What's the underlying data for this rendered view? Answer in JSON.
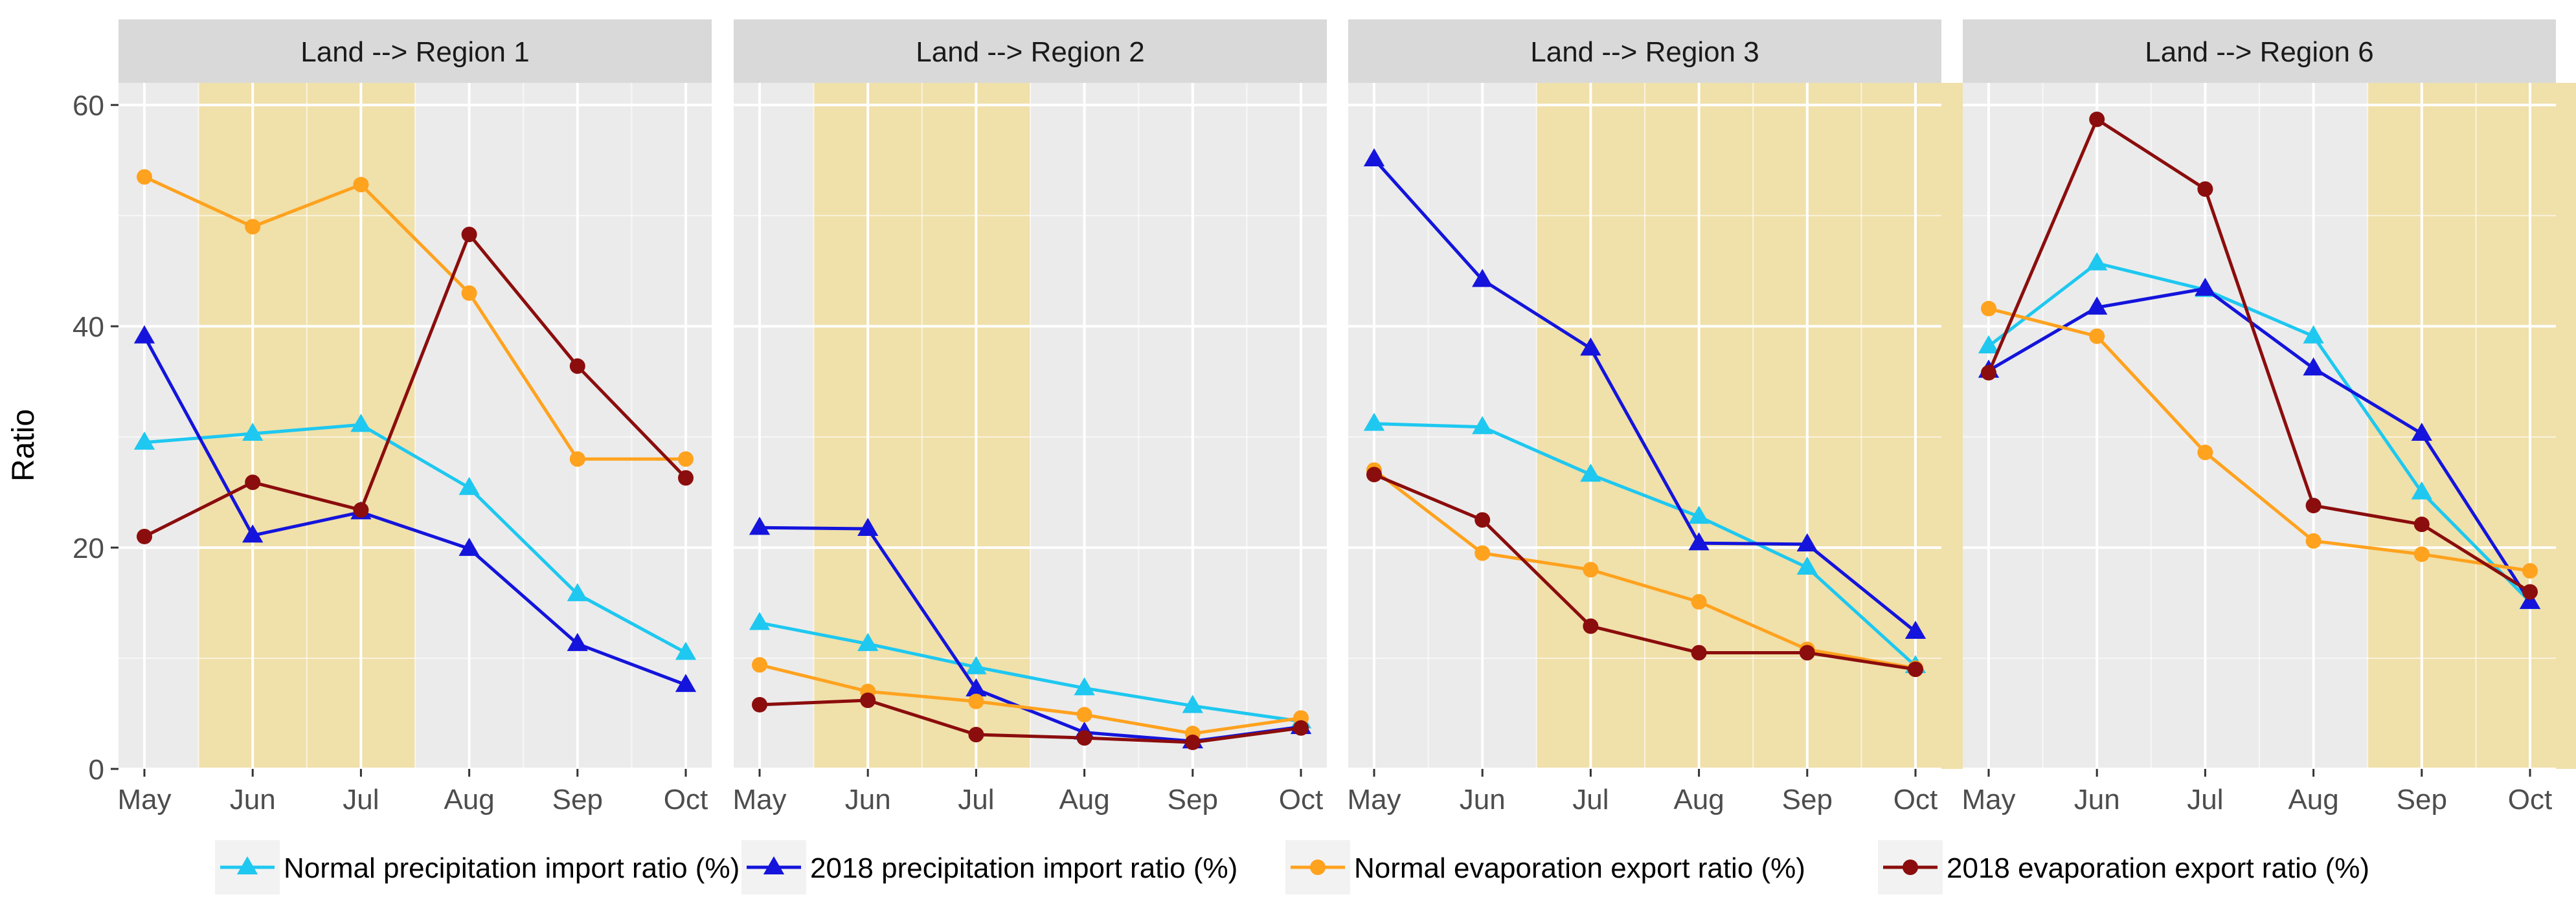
{
  "chart_data": {
    "type": "line",
    "ylabel": "Ratio",
    "ylim": [
      0,
      62
    ],
    "y_ticks": [
      0,
      20,
      40,
      60
    ],
    "categories": [
      "May",
      "Jun",
      "Jul",
      "Aug",
      "Sep",
      "Oct"
    ],
    "colors": {
      "panel_bg": "#ebebeb",
      "strip_bg": "#d9d9d9",
      "highlight": "#f0e0aa",
      "grid": "#ffffff"
    },
    "legend": [
      {
        "label": "Normal precipitation import ratio (%)",
        "color": "#1ec8f0",
        "marker": "triangle"
      },
      {
        "label": "2018 precipitation import ratio (%)",
        "color": "#1414dc",
        "marker": "triangle"
      },
      {
        "label": "Normal evaporation export ratio (%)",
        "color": "#ffa21e",
        "marker": "circle"
      },
      {
        "label": "2018 evaporation export ratio (%)",
        "color": "#8b0d0d",
        "marker": "circle"
      }
    ],
    "panels": [
      {
        "title": "Land --> Region 1",
        "highlight_months": [
          0.5,
          2.5
        ],
        "series": [
          {
            "name": "Normal precipitation import ratio (%)",
            "values": [
              29.5,
              30.3,
              31.1,
              25.4,
              15.8,
              10.5
            ]
          },
          {
            "name": "2018 precipitation import ratio (%)",
            "values": [
              39.1,
              21.1,
              23.2,
              19.9,
              11.3,
              7.6
            ]
          },
          {
            "name": "Normal evaporation export ratio (%)",
            "values": [
              53.5,
              49.0,
              52.8,
              43.0,
              28.0,
              28.0
            ]
          },
          {
            "name": "2018 evaporation export ratio (%)",
            "values": [
              21.0,
              25.9,
              23.4,
              48.3,
              36.4,
              26.3
            ]
          }
        ]
      },
      {
        "title": "Land --> Region 2",
        "highlight_months": [
          0.5,
          2.5
        ],
        "series": [
          {
            "name": "Normal precipitation import ratio (%)",
            "values": [
              13.2,
              11.3,
              9.2,
              7.3,
              5.7,
              4.3
            ]
          },
          {
            "name": "2018 precipitation import ratio (%)",
            "values": [
              21.8,
              21.7,
              7.2,
              3.3,
              2.5,
              3.8
            ]
          },
          {
            "name": "Normal evaporation export ratio (%)",
            "values": [
              9.4,
              7.0,
              6.1,
              4.9,
              3.2,
              4.6
            ]
          },
          {
            "name": "2018 evaporation export ratio (%)",
            "values": [
              5.8,
              6.2,
              3.1,
              2.8,
              2.4,
              3.7
            ]
          }
        ]
      },
      {
        "title": "Land --> Region 3",
        "highlight_months": [
          1.5,
          5.5
        ],
        "series": [
          {
            "name": "Normal precipitation import ratio (%)",
            "values": [
              31.2,
              30.9,
              26.6,
              22.8,
              18.2,
              9.3
            ]
          },
          {
            "name": "2018 precipitation import ratio (%)",
            "values": [
              55.1,
              44.2,
              38.0,
              20.4,
              20.3,
              12.4
            ]
          },
          {
            "name": "Normal evaporation export ratio (%)",
            "values": [
              27.0,
              19.5,
              18.0,
              15.1,
              10.8,
              9.1
            ]
          },
          {
            "name": "2018 evaporation export ratio (%)",
            "values": [
              26.6,
              22.5,
              12.9,
              10.5,
              10.5,
              9.0
            ]
          }
        ]
      },
      {
        "title": "Land --> Region 6",
        "highlight_months": [
          3.5,
          5.5
        ],
        "series": [
          {
            "name": "Normal precipitation import ratio (%)",
            "values": [
              38.2,
              45.7,
              43.3,
              39.1,
              25.0,
              15.1
            ]
          },
          {
            "name": "2018 precipitation import ratio (%)",
            "values": [
              36.0,
              41.7,
              43.4,
              36.2,
              30.3,
              15.1
            ]
          },
          {
            "name": "Normal evaporation export ratio (%)",
            "values": [
              41.6,
              39.1,
              28.6,
              20.6,
              19.4,
              17.9
            ]
          },
          {
            "name": "2018 evaporation export ratio (%)",
            "values": [
              35.8,
              58.7,
              52.4,
              23.8,
              22.1,
              16.0
            ]
          }
        ]
      }
    ]
  }
}
